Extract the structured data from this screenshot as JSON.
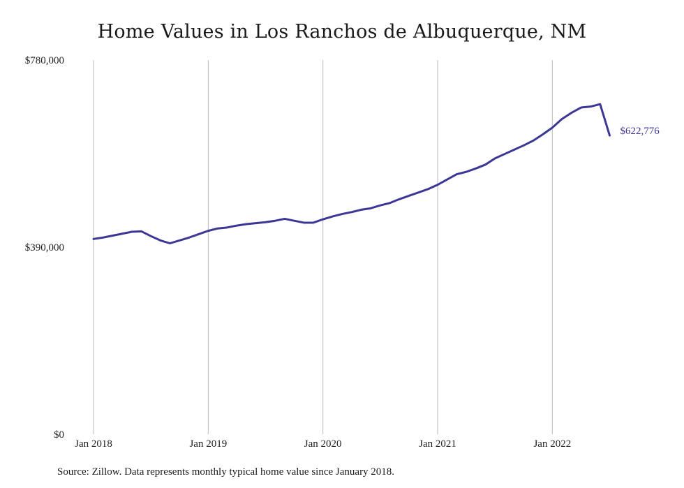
{
  "colors": {
    "line": "#3b3795",
    "grid": "#b9b9b9",
    "text": "#222222"
  },
  "source_note": "Source: Zillow. Data represents monthly typical home value since January 2018.",
  "chart_data": {
    "type": "line",
    "title": "Home Values in Los Ranchos de Albuquerque, NM",
    "xlabel": "",
    "ylabel": "",
    "ylim": [
      0,
      780000
    ],
    "y_ticks": [
      0,
      390000,
      780000
    ],
    "y_tick_labels": [
      "$0",
      "$390,000",
      "$780,000"
    ],
    "x_ticks": [
      "2018-01",
      "2019-01",
      "2020-01",
      "2021-01",
      "2022-01"
    ],
    "x_tick_labels": [
      "Jan 2018",
      "Jan 2019",
      "Jan 2020",
      "Jan 2021",
      "Jan 2022"
    ],
    "grid": "vertical lines at x ticks",
    "end_label": "$622,776",
    "series": [
      {
        "x": [
          "2018-01",
          "2018-02",
          "2018-03",
          "2018-04",
          "2018-05",
          "2018-06",
          "2018-07",
          "2018-08",
          "2018-09",
          "2018-10",
          "2018-11",
          "2018-12",
          "2019-01",
          "2019-02",
          "2019-03",
          "2019-04",
          "2019-05",
          "2019-06",
          "2019-07",
          "2019-08",
          "2019-09",
          "2019-10",
          "2019-11",
          "2019-12",
          "2020-01",
          "2020-02",
          "2020-03",
          "2020-04",
          "2020-05",
          "2020-06",
          "2020-07",
          "2020-08",
          "2020-09",
          "2020-10",
          "2020-11",
          "2020-12",
          "2021-01",
          "2021-02",
          "2021-03",
          "2021-04",
          "2021-05",
          "2021-06",
          "2021-07",
          "2021-08",
          "2021-09",
          "2021-10",
          "2021-11",
          "2021-12",
          "2022-01",
          "2022-02",
          "2022-03",
          "2022-04",
          "2022-05",
          "2022-06",
          "2022-07"
        ],
        "values": [
          407000,
          410000,
          414000,
          418000,
          422000,
          423000,
          413000,
          404000,
          398000,
          404000,
          410000,
          417000,
          424000,
          429000,
          431000,
          435000,
          438000,
          440000,
          442000,
          445000,
          449000,
          445000,
          441000,
          441000,
          448000,
          454000,
          459000,
          463000,
          468000,
          471000,
          477000,
          482000,
          490000,
          497000,
          504000,
          511000,
          520000,
          531000,
          542000,
          547000,
          554000,
          562000,
          575000,
          584000,
          593000,
          602000,
          612000,
          625000,
          639000,
          657000,
          670000,
          681000,
          683000,
          688000,
          622776
        ]
      }
    ]
  }
}
